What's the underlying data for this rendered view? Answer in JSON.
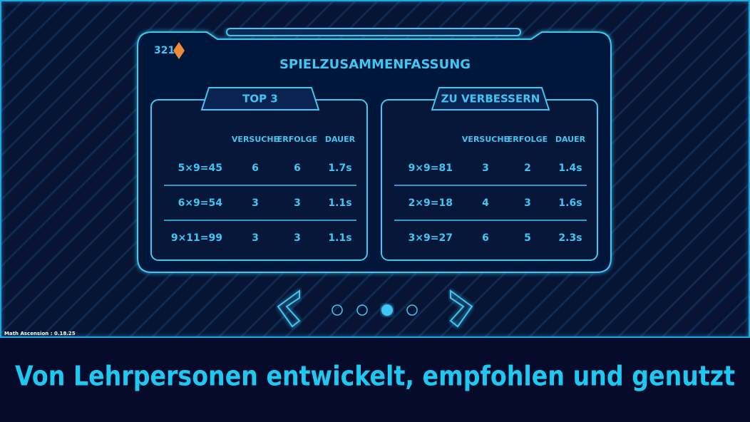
{
  "currency": {
    "amount": "321"
  },
  "title": "SPIELZUSAMMENFASSUNG",
  "tables": [
    {
      "title": "TOP 3",
      "headers": [
        "VERSUCHE",
        "ERFOLGE",
        "DAUER"
      ],
      "rows": [
        [
          "5×9=45",
          "6",
          "6",
          "1.7s"
        ],
        [
          "6×9=54",
          "3",
          "3",
          "1.1s"
        ],
        [
          "9×11=99",
          "3",
          "3",
          "1.1s"
        ]
      ]
    },
    {
      "title": "ZU VERBESSERN",
      "headers": [
        "VERSUCHE",
        "ERFOLGE",
        "DAUER"
      ],
      "rows": [
        [
          "9×9=81",
          "3",
          "2",
          "1.4s"
        ],
        [
          "2×9=18",
          "4",
          "3",
          "1.6s"
        ],
        [
          "3×9=27",
          "6",
          "5",
          "2.3s"
        ]
      ]
    }
  ],
  "version": "Math Ascension : 0.18.25",
  "banner": "Von Lehrpersonen entwickelt, empfohlen und genutzt"
}
